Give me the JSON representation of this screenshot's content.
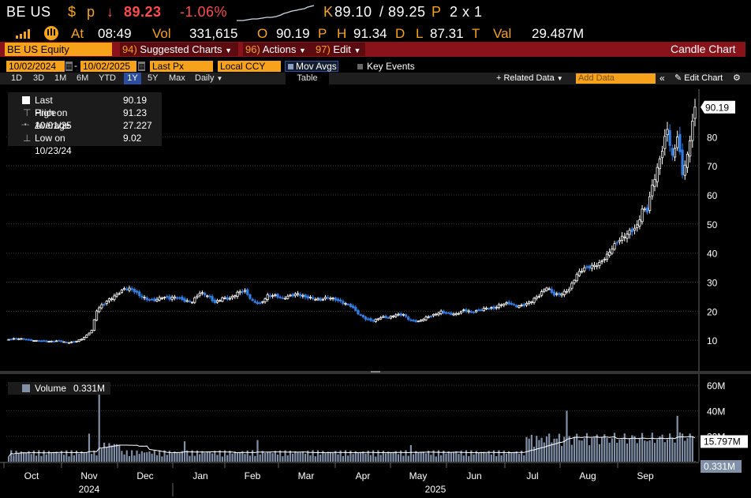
{
  "quote": {
    "ticker": "BE US",
    "currency": "$",
    "price_flag": "p",
    "arrow": "↓",
    "price": "89.23",
    "change": "-1.06%",
    "bid_label": "K",
    "bid": "89.10",
    "sep": "/",
    "ask": "89.25",
    "ask_flag": "P",
    "size": "2 x 1"
  },
  "stats": {
    "at_label": "At",
    "time": "08:49",
    "vol_label": "Vol",
    "volume": "331,615",
    "open_label": "O",
    "open": "90.19",
    "open_flag": "P",
    "high_label": "H",
    "high": "91.34",
    "high_flag": "D",
    "low_label": "L",
    "low": "87.31",
    "low_flag": "T",
    "val_label": "Val",
    "value": "29.487M"
  },
  "toolbar": {
    "security": "BE US Equity",
    "suggested_num": "94)",
    "suggested": "Suggested Charts",
    "actions_num": "96)",
    "actions": "Actions",
    "edit_num": "97)",
    "edit": "Edit",
    "title": "Candle Chart"
  },
  "controls": {
    "start_date": "10/02/2024",
    "end_date": "10/02/2025",
    "field": "Last Px",
    "ccy": "Local CCY",
    "mov_avgs": "Mov Avgs",
    "key_events": "Key Events"
  },
  "ranges": {
    "items": [
      "1D",
      "3D",
      "1M",
      "6M",
      "YTD",
      "1Y",
      "5Y",
      "Max"
    ],
    "selected": "1Y",
    "period": "Daily",
    "table": "Table",
    "related": "+ Related Data",
    "add_placeholder": "Add Data",
    "edit_chart": "Edit Chart"
  },
  "legend": {
    "last_label": "Last Price",
    "last_value": "90.19",
    "high_label": "High on 10/01/25",
    "high_value": "91.23",
    "avg_label": "Average",
    "avg_value": "27.227",
    "low_label": "Low on 10/23/24",
    "low_value": "9.02"
  },
  "volume_legend": {
    "label": "Volume",
    "value": "0.331M"
  },
  "colors": {
    "up": "#ffffff",
    "down": "#2f7fe6",
    "amber": "#f7a21b",
    "header_red": "#8a1219",
    "grid": "#3a3a3a",
    "vol": "#8090a8"
  },
  "chart_data": {
    "type": "candlestick",
    "ylim": [
      0,
      95
    ],
    "yticks": [
      10,
      20,
      30,
      40,
      50,
      60,
      70,
      80
    ],
    "last_price": "90.19",
    "xlabels": [
      "Oct",
      "Nov",
      "Dec",
      "Jan",
      "Feb",
      "Mar",
      "Apr",
      "May",
      "Jun",
      "Jul",
      "Aug",
      "Sep"
    ],
    "year_labels": [
      "2024",
      "2025"
    ],
    "closes": [
      [
        0,
        10.3
      ],
      [
        4,
        10.4
      ],
      [
        8,
        10.1
      ],
      [
        12,
        10.0
      ],
      [
        16,
        9.5
      ],
      [
        20,
        9.6
      ],
      [
        23,
        9.3
      ],
      [
        26,
        9.6
      ],
      [
        29,
        10.5
      ],
      [
        31,
        11.5
      ],
      [
        33,
        13.2
      ],
      [
        35,
        20.0
      ],
      [
        37,
        22.0
      ],
      [
        40,
        24.5
      ],
      [
        43,
        26.0
      ],
      [
        46,
        27.5
      ],
      [
        49,
        27.0
      ],
      [
        52,
        25.5
      ],
      [
        55,
        24.5
      ],
      [
        58,
        24.0
      ],
      [
        61,
        24.5
      ],
      [
        64,
        24.0
      ],
      [
        67,
        25.0
      ],
      [
        70,
        24.0
      ],
      [
        73,
        23.5
      ],
      [
        76,
        26.0
      ],
      [
        79,
        25.0
      ],
      [
        82,
        23.0
      ],
      [
        85,
        25.0
      ],
      [
        88,
        24.5
      ],
      [
        91,
        26.0
      ],
      [
        94,
        26.5
      ],
      [
        97,
        23.5
      ],
      [
        100,
        23.0
      ],
      [
        103,
        25.5
      ],
      [
        106,
        25.0
      ],
      [
        109,
        24.0
      ],
      [
        112,
        25.5
      ],
      [
        115,
        26.5
      ],
      [
        118,
        25.0
      ],
      [
        121,
        24.0
      ],
      [
        124,
        23.5
      ],
      [
        127,
        25.0
      ],
      [
        130,
        24.5
      ],
      [
        133,
        23.0
      ],
      [
        136,
        21.5
      ],
      [
        139,
        19.0
      ],
      [
        142,
        17.5
      ],
      [
        145,
        17.0
      ],
      [
        148,
        18.0
      ],
      [
        151,
        17.5
      ],
      [
        154,
        18.5
      ],
      [
        157,
        19.0
      ],
      [
        160,
        17.0
      ],
      [
        163,
        16.5
      ],
      [
        166,
        17.5
      ],
      [
        169,
        18.5
      ],
      [
        172,
        20.0
      ],
      [
        175,
        19.5
      ],
      [
        178,
        19.0
      ],
      [
        181,
        20.0
      ],
      [
        184,
        19.5
      ],
      [
        187,
        20.5
      ],
      [
        190,
        21.5
      ],
      [
        193,
        21.0
      ],
      [
        196,
        22.0
      ],
      [
        199,
        22.5
      ],
      [
        202,
        22.0
      ],
      [
        205,
        22.5
      ],
      [
        208,
        23.5
      ],
      [
        211,
        25.0
      ],
      [
        214,
        28.0
      ],
      [
        217,
        26.0
      ],
      [
        220,
        26.5
      ],
      [
        223,
        27.5
      ],
      [
        226,
        32.0
      ],
      [
        229,
        34.5
      ],
      [
        232,
        36.0
      ],
      [
        235,
        37.0
      ],
      [
        238,
        39.0
      ],
      [
        241,
        42.0
      ],
      [
        244,
        45.0
      ],
      [
        247,
        48.0
      ],
      [
        250,
        50.0
      ],
      [
        252,
        55.0
      ],
      [
        254,
        54.0
      ],
      [
        256,
        62.0
      ],
      [
        258,
        68.0
      ],
      [
        260,
        76.0
      ],
      [
        262,
        84.0
      ],
      [
        264,
        74.0
      ],
      [
        266,
        81.0
      ],
      [
        268,
        67.0
      ],
      [
        270,
        72.0
      ],
      [
        272,
        84.0
      ],
      [
        273,
        90.19
      ]
    ],
    "volume": {
      "axis_ticks": [
        "20M",
        "40M",
        "60M"
      ],
      "avg_label": "15.797M",
      "last": "0.331M"
    }
  }
}
